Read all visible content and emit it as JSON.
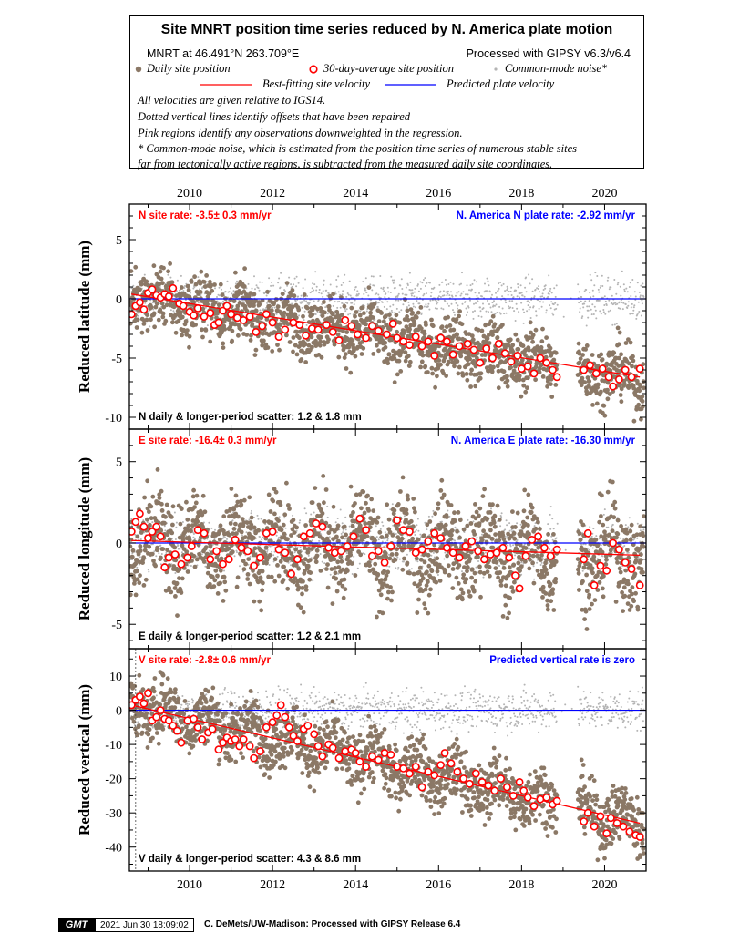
{
  "header": {
    "title": "Site MNRT position time series reduced by N. America plate motion",
    "site_line": "MNRT at 46.491°N 263.709°E",
    "processing": "Processed with GIPSY v6.3/v6.4",
    "legend": {
      "daily": "Daily site position",
      "avg30": "30-day-average site position",
      "cmn": "Common-mode noise*",
      "best_fit": "Best-fitting site velocity",
      "predicted": "Predicted plate velocity"
    },
    "notes": [
      "All velocities are given relative to IGS14.",
      "Dotted vertical lines identify offsets that have been repaired",
      "Pink regions identify any observations downweighted in the regression.",
      "* Common-mode noise, which is estimated from the position time series of numerous stable sites",
      "far from tectonically active regions, is subtracted from the measured daily site coordinates."
    ]
  },
  "colors": {
    "daily": "#8b7866",
    "cmn": "#b4b4b4",
    "avg_edge": "#ff0000",
    "fit": "#ff0000",
    "plate": "#0000ff"
  },
  "x_ticks": [
    "2010",
    "2012",
    "2014",
    "2016",
    "2018",
    "2020"
  ],
  "chart_data": [
    {
      "type": "scatter",
      "component": "N",
      "ylabel": "Reduced latitude (mm)",
      "site_rate": "N site rate:  -3.5± 0.3 mm/yr",
      "plate_rate": "N. America N plate rate: -2.92 mm/yr",
      "scatter": "N daily & longer-period scatter:   1.2 &   1.8 mm",
      "xlim": [
        2008.55,
        2021.0
      ],
      "ylim": [
        -11.0,
        8.0
      ],
      "y_ticks": [
        5,
        0,
        -5,
        -10
      ],
      "fit_line": {
        "x": [
          2008.6,
          2020.85
        ],
        "y": [
          0.4,
          -6.6
        ]
      },
      "plate_line": {
        "y": 0
      },
      "avg_points": [
        [
          2008.6,
          -1.3
        ],
        [
          2008.7,
          -0.6
        ],
        [
          2008.8,
          -0.3
        ],
        [
          2008.9,
          -0.9
        ],
        [
          2009.0,
          0.5
        ],
        [
          2009.1,
          0.8
        ],
        [
          2009.2,
          0.3
        ],
        [
          2009.3,
          0.1
        ],
        [
          2009.4,
          0.4
        ],
        [
          2009.5,
          0.2
        ],
        [
          2009.6,
          0.9
        ],
        [
          2009.75,
          -0.4
        ],
        [
          2009.85,
          -0.6
        ],
        [
          2010.0,
          -1.1
        ],
        [
          2010.1,
          -1.4
        ],
        [
          2010.2,
          -0.8
        ],
        [
          2010.35,
          -1.5
        ],
        [
          2010.5,
          -1.2
        ],
        [
          2010.6,
          -2.2
        ],
        [
          2010.7,
          -2.0
        ],
        [
          2010.8,
          -1.0
        ],
        [
          2010.9,
          -0.6
        ],
        [
          2011.0,
          -1.3
        ],
        [
          2011.15,
          -1.6
        ],
        [
          2011.3,
          -1.8
        ],
        [
          2011.45,
          -1.5
        ],
        [
          2011.6,
          -2.8
        ],
        [
          2011.75,
          -2.3
        ],
        [
          2011.85,
          -1.3
        ],
        [
          2012.0,
          -2.0
        ],
        [
          2012.15,
          -3.2
        ],
        [
          2012.3,
          -2.6
        ],
        [
          2012.5,
          -2.0
        ],
        [
          2012.65,
          -2.2
        ],
        [
          2012.8,
          -3.1
        ],
        [
          2012.95,
          -2.5
        ],
        [
          2013.1,
          -2.6
        ],
        [
          2013.3,
          -2.2
        ],
        [
          2013.45,
          -2.8
        ],
        [
          2013.6,
          -3.5
        ],
        [
          2013.75,
          -1.8
        ],
        [
          2013.9,
          -2.3
        ],
        [
          2014.05,
          -3.0
        ],
        [
          2014.25,
          -3.3
        ],
        [
          2014.4,
          -2.3
        ],
        [
          2014.55,
          -2.7
        ],
        [
          2014.75,
          -3.0
        ],
        [
          2014.9,
          -2.1
        ],
        [
          2015.0,
          -3.3
        ],
        [
          2015.15,
          -3.6
        ],
        [
          2015.3,
          -3.9
        ],
        [
          2015.45,
          -3.2
        ],
        [
          2015.6,
          -4.0
        ],
        [
          2015.75,
          -3.6
        ],
        [
          2015.9,
          -4.8
        ],
        [
          2016.05,
          -3.3
        ],
        [
          2016.2,
          -3.6
        ],
        [
          2016.35,
          -4.7
        ],
        [
          2016.5,
          -4.0
        ],
        [
          2016.7,
          -3.8
        ],
        [
          2016.85,
          -4.3
        ],
        [
          2017.0,
          -5.4
        ],
        [
          2017.15,
          -4.2
        ],
        [
          2017.3,
          -5.0
        ],
        [
          2017.45,
          -3.8
        ],
        [
          2017.6,
          -4.6
        ],
        [
          2017.75,
          -5.3
        ],
        [
          2017.9,
          -4.8
        ],
        [
          2018.0,
          -5.9
        ],
        [
          2018.15,
          -5.7
        ],
        [
          2018.3,
          -6.3
        ],
        [
          2018.45,
          -5.0
        ],
        [
          2018.6,
          -5.4
        ],
        [
          2018.75,
          -6.0
        ],
        [
          2018.85,
          -6.6
        ],
        [
          2019.5,
          -6.0
        ],
        [
          2019.65,
          -5.6
        ],
        [
          2019.8,
          -6.3
        ],
        [
          2019.95,
          -5.9
        ],
        [
          2020.1,
          -6.6
        ],
        [
          2020.2,
          -7.4
        ],
        [
          2020.35,
          -6.8
        ],
        [
          2020.5,
          -6.0
        ],
        [
          2020.65,
          -6.6
        ],
        [
          2020.85,
          -5.9
        ]
      ],
      "daily_model": {
        "start": [
          2008.55,
          0.3
        ],
        "rate": -0.57,
        "spread": 1.25,
        "gap": [
          2018.85,
          2019.35
        ]
      }
    },
    {
      "type": "scatter",
      "component": "E",
      "ylabel": "Reduced longitude (mm)",
      "site_rate": "E site rate: -16.4± 0.3 mm/yr",
      "plate_rate": "N. America E plate rate: -16.30 mm/yr",
      "scatter": "E daily & longer-period scatter:   1.2 &   2.1 mm",
      "xlim": [
        2008.55,
        2021.0
      ],
      "ylim": [
        -6.5,
        7.0
      ],
      "y_ticks": [
        5,
        0,
        -5
      ],
      "fit_line": {
        "x": [
          2008.6,
          2020.85
        ],
        "y": [
          0.15,
          -0.75
        ]
      },
      "plate_line": {
        "y": 0
      },
      "avg_points": [
        [
          2008.6,
          0.7
        ],
        [
          2008.7,
          1.3
        ],
        [
          2008.8,
          1.8
        ],
        [
          2008.9,
          1.0
        ],
        [
          2009.0,
          0.3
        ],
        [
          2009.1,
          0.7
        ],
        [
          2009.2,
          1.0
        ],
        [
          2009.3,
          0.4
        ],
        [
          2009.4,
          -1.5
        ],
        [
          2009.5,
          -0.9
        ],
        [
          2009.65,
          -0.7
        ],
        [
          2009.8,
          -1.3
        ],
        [
          2009.95,
          -0.9
        ],
        [
          2010.05,
          -0.2
        ],
        [
          2010.2,
          0.8
        ],
        [
          2010.35,
          0.6
        ],
        [
          2010.5,
          -1.0
        ],
        [
          2010.65,
          -0.5
        ],
        [
          2010.8,
          -1.3
        ],
        [
          2010.95,
          -1.0
        ],
        [
          2011.1,
          0.2
        ],
        [
          2011.25,
          -0.3
        ],
        [
          2011.4,
          -0.5
        ],
        [
          2011.55,
          -1.4
        ],
        [
          2011.7,
          -0.9
        ],
        [
          2011.85,
          0.6
        ],
        [
          2012.0,
          0.7
        ],
        [
          2012.15,
          -0.4
        ],
        [
          2012.3,
          -0.6
        ],
        [
          2012.45,
          -1.9
        ],
        [
          2012.6,
          -1.0
        ],
        [
          2012.75,
          0.4
        ],
        [
          2012.9,
          0.6
        ],
        [
          2013.05,
          1.2
        ],
        [
          2013.2,
          1.0
        ],
        [
          2013.35,
          -0.3
        ],
        [
          2013.5,
          -0.6
        ],
        [
          2013.65,
          -0.5
        ],
        [
          2013.8,
          -0.2
        ],
        [
          2013.95,
          0.4
        ],
        [
          2014.1,
          1.5
        ],
        [
          2014.25,
          0.8
        ],
        [
          2014.4,
          -0.8
        ],
        [
          2014.55,
          -0.5
        ],
        [
          2014.7,
          -1.2
        ],
        [
          2014.85,
          -0.2
        ],
        [
          2015.0,
          1.4
        ],
        [
          2015.15,
          0.8
        ],
        [
          2015.3,
          0.7
        ],
        [
          2015.45,
          -0.6
        ],
        [
          2015.6,
          -0.4
        ],
        [
          2015.75,
          0.1
        ],
        [
          2015.9,
          0.6
        ],
        [
          2016.05,
          0.3
        ],
        [
          2016.2,
          -0.3
        ],
        [
          2016.35,
          -0.6
        ],
        [
          2016.5,
          -0.9
        ],
        [
          2016.65,
          -0.2
        ],
        [
          2016.8,
          0.1
        ],
        [
          2016.95,
          -0.5
        ],
        [
          2017.1,
          -1.0
        ],
        [
          2017.25,
          -0.7
        ],
        [
          2017.4,
          -0.6
        ],
        [
          2017.55,
          -0.3
        ],
        [
          2017.7,
          -0.9
        ],
        [
          2017.85,
          -2.0
        ],
        [
          2017.95,
          -2.8
        ],
        [
          2018.1,
          -0.8
        ],
        [
          2018.25,
          0.2
        ],
        [
          2018.4,
          0.4
        ],
        [
          2018.55,
          -0.3
        ],
        [
          2018.7,
          -0.8
        ],
        [
          2018.85,
          -0.4
        ],
        [
          2019.5,
          -1.0
        ],
        [
          2019.6,
          0.6
        ],
        [
          2019.75,
          -2.6
        ],
        [
          2019.9,
          -1.4
        ],
        [
          2020.05,
          -1.7
        ],
        [
          2020.2,
          0.0
        ],
        [
          2020.35,
          -0.4
        ],
        [
          2020.5,
          -1.2
        ],
        [
          2020.65,
          -1.6
        ],
        [
          2020.85,
          -2.6
        ]
      ],
      "daily_model": {
        "start": [
          2008.55,
          0.2
        ],
        "rate": -0.075,
        "spread": 1.4,
        "gap": [
          2018.85,
          2019.35
        ]
      }
    },
    {
      "type": "scatter",
      "component": "V",
      "ylabel": "Reduced vertical (mm)",
      "site_rate": "V site rate:  -2.8± 0.6 mm/yr",
      "plate_rate": "Predicted vertical rate is zero",
      "scatter": "V daily & longer-period scatter:   4.3 &   8.6 mm",
      "xlim": [
        2008.55,
        2021.0
      ],
      "ylim": [
        -47.0,
        18.0
      ],
      "y_ticks": [
        10,
        0,
        -10,
        -20,
        -30,
        -40
      ],
      "fit_line": {
        "x": [
          2008.6,
          2020.85
        ],
        "y": [
          1.5,
          -33.0
        ]
      },
      "plate_line": {
        "y": 0
      },
      "offset_x": 2008.7,
      "avg_points": [
        [
          2008.6,
          1.5
        ],
        [
          2008.7,
          3.0
        ],
        [
          2008.8,
          4.0
        ],
        [
          2008.9,
          2.0
        ],
        [
          2009.0,
          5.0
        ],
        [
          2009.1,
          -3.0
        ],
        [
          2009.2,
          -2.0
        ],
        [
          2009.3,
          0.0
        ],
        [
          2009.4,
          -2.5
        ],
        [
          2009.5,
          -3.0
        ],
        [
          2009.6,
          -4.5
        ],
        [
          2009.7,
          -6.0
        ],
        [
          2009.8,
          -9.5
        ],
        [
          2009.95,
          -3.0
        ],
        [
          2010.1,
          -2.5
        ],
        [
          2010.2,
          -5.0
        ],
        [
          2010.3,
          -8.5
        ],
        [
          2010.45,
          -6.5
        ],
        [
          2010.55,
          -5.5
        ],
        [
          2010.7,
          -11.5
        ],
        [
          2010.8,
          -9.5
        ],
        [
          2010.9,
          -8.0
        ],
        [
          2011.0,
          -9.0
        ],
        [
          2011.1,
          -8.5
        ],
        [
          2011.2,
          -10.5
        ],
        [
          2011.3,
          -8.5
        ],
        [
          2011.45,
          -10.5
        ],
        [
          2011.55,
          -14.0
        ],
        [
          2011.7,
          -12.0
        ],
        [
          2011.85,
          -5.0
        ],
        [
          2012.0,
          -3.5
        ],
        [
          2012.1,
          -1.5
        ],
        [
          2012.2,
          1.5
        ],
        [
          2012.3,
          -2.0
        ],
        [
          2012.4,
          -5.0
        ],
        [
          2012.5,
          -7.5
        ],
        [
          2012.6,
          -9.0
        ],
        [
          2012.75,
          -5.5
        ],
        [
          2012.85,
          -4.5
        ],
        [
          2013.0,
          -7.0
        ],
        [
          2013.1,
          -10.5
        ],
        [
          2013.2,
          -13.5
        ],
        [
          2013.35,
          -10.0
        ],
        [
          2013.45,
          -11.0
        ],
        [
          2013.6,
          -14.0
        ],
        [
          2013.75,
          -12.0
        ],
        [
          2013.9,
          -11.5
        ],
        [
          2014.0,
          -12.5
        ],
        [
          2014.1,
          -15.0
        ],
        [
          2014.25,
          -16.5
        ],
        [
          2014.4,
          -13.5
        ],
        [
          2014.55,
          -14.5
        ],
        [
          2014.7,
          -12.5
        ],
        [
          2014.85,
          -13.0
        ],
        [
          2015.0,
          -16.5
        ],
        [
          2015.15,
          -17.0
        ],
        [
          2015.3,
          -18.5
        ],
        [
          2015.45,
          -16.5
        ],
        [
          2015.6,
          -22.5
        ],
        [
          2015.75,
          -18.0
        ],
        [
          2015.9,
          -19.0
        ],
        [
          2016.05,
          -16.0
        ],
        [
          2016.15,
          -12.5
        ],
        [
          2016.3,
          -15.5
        ],
        [
          2016.45,
          -18.0
        ],
        [
          2016.6,
          -20.0
        ],
        [
          2016.75,
          -21.5
        ],
        [
          2016.9,
          -18.5
        ],
        [
          2017.05,
          -21.0
        ],
        [
          2017.2,
          -22.0
        ],
        [
          2017.35,
          -23.5
        ],
        [
          2017.5,
          -20.0
        ],
        [
          2017.65,
          -22.5
        ],
        [
          2017.8,
          -25.0
        ],
        [
          2017.95,
          -21.0
        ],
        [
          2018.05,
          -23.5
        ],
        [
          2018.15,
          -25.5
        ],
        [
          2018.3,
          -28.0
        ],
        [
          2018.45,
          -26.0
        ],
        [
          2018.6,
          -25.5
        ],
        [
          2018.75,
          -27.5
        ],
        [
          2018.85,
          -26.5
        ],
        [
          2019.5,
          -32.5
        ],
        [
          2019.6,
          -30.0
        ],
        [
          2019.75,
          -34.0
        ],
        [
          2019.9,
          -31.0
        ],
        [
          2020.05,
          -36.0
        ],
        [
          2020.15,
          -31.5
        ],
        [
          2020.3,
          -33.0
        ],
        [
          2020.45,
          -34.0
        ],
        [
          2020.6,
          -35.5
        ],
        [
          2020.75,
          -36.5
        ],
        [
          2020.85,
          -37.0
        ]
      ],
      "daily_model": {
        "start": [
          2008.55,
          2.0
        ],
        "rate": -2.85,
        "spread": 4.3,
        "gap": [
          2018.85,
          2019.35
        ]
      }
    }
  ],
  "footer": {
    "logo": "GMT",
    "timestamp": "2021 Jun 30 18:09:02",
    "credit": "C. DeMets/UW-Madison: Processed with GIPSY Release 6.4"
  }
}
